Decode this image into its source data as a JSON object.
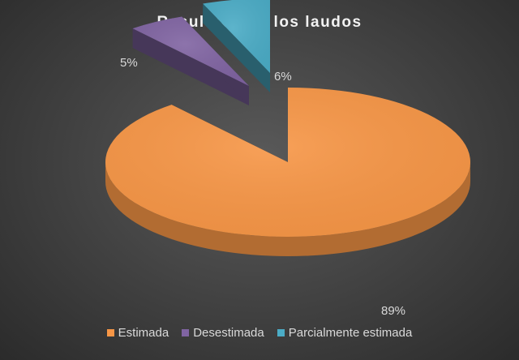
{
  "chart_data": {
    "type": "pie",
    "title": "Resultado de los laudos",
    "categories": [
      "Estimada",
      "Desestimada",
      "Parcialmente estimada"
    ],
    "values": [
      89,
      5,
      6
    ],
    "labels": [
      "89%",
      "5%",
      "6%"
    ],
    "colors": [
      "#F79646",
      "#8064A2",
      "#4BACC6"
    ],
    "exploded": true,
    "three_d": true,
    "legend_position": "bottom"
  }
}
